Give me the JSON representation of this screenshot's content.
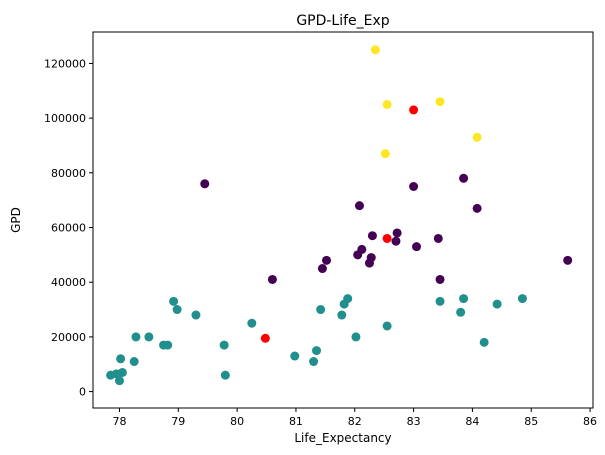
{
  "chart_data": {
    "type": "scatter",
    "title": "GPD-Life_Exp",
    "xlabel": "Life_Expectancy",
    "ylabel": "GPD",
    "xlim": [
      77.55,
      86.05
    ],
    "ylim": [
      -6000,
      131500
    ],
    "xticks": [
      78,
      79,
      80,
      81,
      82,
      83,
      84,
      85,
      86
    ],
    "yticks": [
      0,
      20000,
      40000,
      60000,
      80000,
      100000,
      120000
    ],
    "grid": false,
    "cluster_colors": [
      "#440154",
      "#21908d",
      "#fde725",
      "#ff0000"
    ],
    "series": [
      {
        "cluster": 0,
        "color": "#440154",
        "points": [
          [
            79.45,
            76000
          ],
          [
            80.6,
            41000
          ],
          [
            81.45,
            45000
          ],
          [
            81.52,
            48000
          ],
          [
            82.05,
            50000
          ],
          [
            82.08,
            68000
          ],
          [
            82.12,
            52000
          ],
          [
            82.25,
            47000
          ],
          [
            82.28,
            49000
          ],
          [
            82.3,
            57000
          ],
          [
            82.7,
            55000
          ],
          [
            82.72,
            58000
          ],
          [
            83.0,
            75000
          ],
          [
            83.05,
            53000
          ],
          [
            83.42,
            56000
          ],
          [
            83.45,
            41000
          ],
          [
            83.85,
            78000
          ],
          [
            84.08,
            67000
          ],
          [
            85.62,
            48000
          ]
        ]
      },
      {
        "cluster": 1,
        "color": "#21908d",
        "points": [
          [
            77.85,
            6000
          ],
          [
            77.95,
            6500
          ],
          [
            78.0,
            4000
          ],
          [
            78.02,
            12000
          ],
          [
            78.05,
            7000
          ],
          [
            78.25,
            11000
          ],
          [
            78.28,
            20000
          ],
          [
            78.5,
            20000
          ],
          [
            78.75,
            17000
          ],
          [
            78.82,
            17000
          ],
          [
            78.92,
            33000
          ],
          [
            78.98,
            30000
          ],
          [
            79.3,
            28000
          ],
          [
            79.78,
            17000
          ],
          [
            79.8,
            6000
          ],
          [
            80.25,
            25000
          ],
          [
            80.98,
            13000
          ],
          [
            81.3,
            11000
          ],
          [
            81.35,
            15000
          ],
          [
            81.42,
            30000
          ],
          [
            81.78,
            28000
          ],
          [
            81.82,
            32000
          ],
          [
            81.88,
            34000
          ],
          [
            82.02,
            20000
          ],
          [
            82.55,
            24000
          ],
          [
            83.45,
            33000
          ],
          [
            83.8,
            29000
          ],
          [
            83.85,
            34000
          ],
          [
            84.2,
            18000
          ],
          [
            84.42,
            32000
          ],
          [
            84.85,
            34000
          ]
        ]
      },
      {
        "cluster": 2,
        "color": "#fde725",
        "points": [
          [
            82.35,
            125000
          ],
          [
            82.52,
            87000
          ],
          [
            82.55,
            105000
          ],
          [
            83.45,
            106000
          ],
          [
            84.08,
            93000
          ]
        ]
      },
      {
        "cluster": 3,
        "color": "#ff0000",
        "points": [
          [
            80.48,
            19500
          ],
          [
            82.55,
            56000
          ],
          [
            83.0,
            103000
          ]
        ]
      }
    ]
  }
}
